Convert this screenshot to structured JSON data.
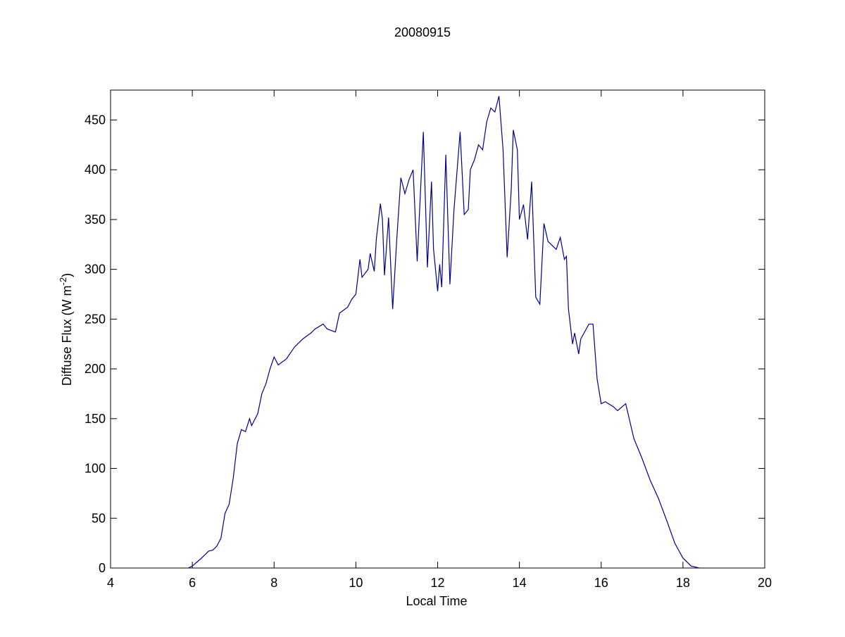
{
  "chart_data": {
    "type": "line",
    "title": "20080915",
    "xlabel": "Local Time",
    "ylabel": [
      "Diffuse Flux (W m",
      "-2",
      ")"
    ],
    "xlim": [
      4,
      20
    ],
    "xticks": [
      4,
      6,
      8,
      10,
      12,
      14,
      16,
      18,
      20
    ],
    "ylim": [
      0,
      480
    ],
    "yticks": [
      0,
      50,
      100,
      150,
      200,
      250,
      300,
      350,
      400,
      450
    ],
    "series": [
      {
        "color": "#00008b",
        "x": [
          5.9,
          6.0,
          6.2,
          6.4,
          6.5,
          6.6,
          6.7,
          6.8,
          6.9,
          7.0,
          7.1,
          7.2,
          7.3,
          7.4,
          7.45,
          7.6,
          7.7,
          7.8,
          7.9,
          8.0,
          8.1,
          8.3,
          8.5,
          8.7,
          8.9,
          9.0,
          9.2,
          9.3,
          9.5,
          9.6,
          9.8,
          9.9,
          10.0,
          10.1,
          10.15,
          10.3,
          10.35,
          10.45,
          10.5,
          10.6,
          10.65,
          10.7,
          10.8,
          10.9,
          11.0,
          11.1,
          11.2,
          11.3,
          11.4,
          11.5,
          11.65,
          11.75,
          11.85,
          11.9,
          12.0,
          12.05,
          12.1,
          12.2,
          12.3,
          12.4,
          12.55,
          12.65,
          12.75,
          12.8,
          12.9,
          13.0,
          13.1,
          13.2,
          13.3,
          13.4,
          13.5,
          13.6,
          13.7,
          13.8,
          13.85,
          13.95,
          14.0,
          14.1,
          14.2,
          14.3,
          14.4,
          14.5,
          14.6,
          14.7,
          14.9,
          15.0,
          15.1,
          15.15,
          15.2,
          15.3,
          15.35,
          15.45,
          15.5,
          15.7,
          15.8,
          15.9,
          16.0,
          16.1,
          16.3,
          16.4,
          16.6,
          16.8,
          17.0,
          17.2,
          17.4,
          17.6,
          17.8,
          18.0,
          18.2,
          18.4
        ],
        "values": [
          0,
          2,
          9,
          17,
          18,
          22,
          30,
          55,
          64,
          90,
          125,
          139,
          137,
          150,
          143,
          155,
          175,
          185,
          200,
          212,
          204,
          210,
          222,
          230,
          236,
          240,
          245,
          240,
          237,
          256,
          262,
          270,
          275,
          310,
          292,
          300,
          316,
          298,
          330,
          366,
          350,
          294,
          352,
          260,
          330,
          392,
          376,
          390,
          400,
          308,
          438,
          302,
          388,
          320,
          278,
          305,
          282,
          415,
          285,
          360,
          438,
          355,
          360,
          400,
          410,
          425,
          420,
          448,
          462,
          458,
          474,
          420,
          312,
          380,
          440,
          420,
          350,
          365,
          330,
          388,
          272,
          265,
          346,
          328,
          320,
          332,
          310,
          313,
          260,
          225,
          236,
          215,
          230,
          245,
          245,
          190,
          165,
          167,
          162,
          158,
          165,
          130,
          110,
          88,
          70,
          48,
          25,
          10,
          2,
          0
        ]
      }
    ]
  }
}
